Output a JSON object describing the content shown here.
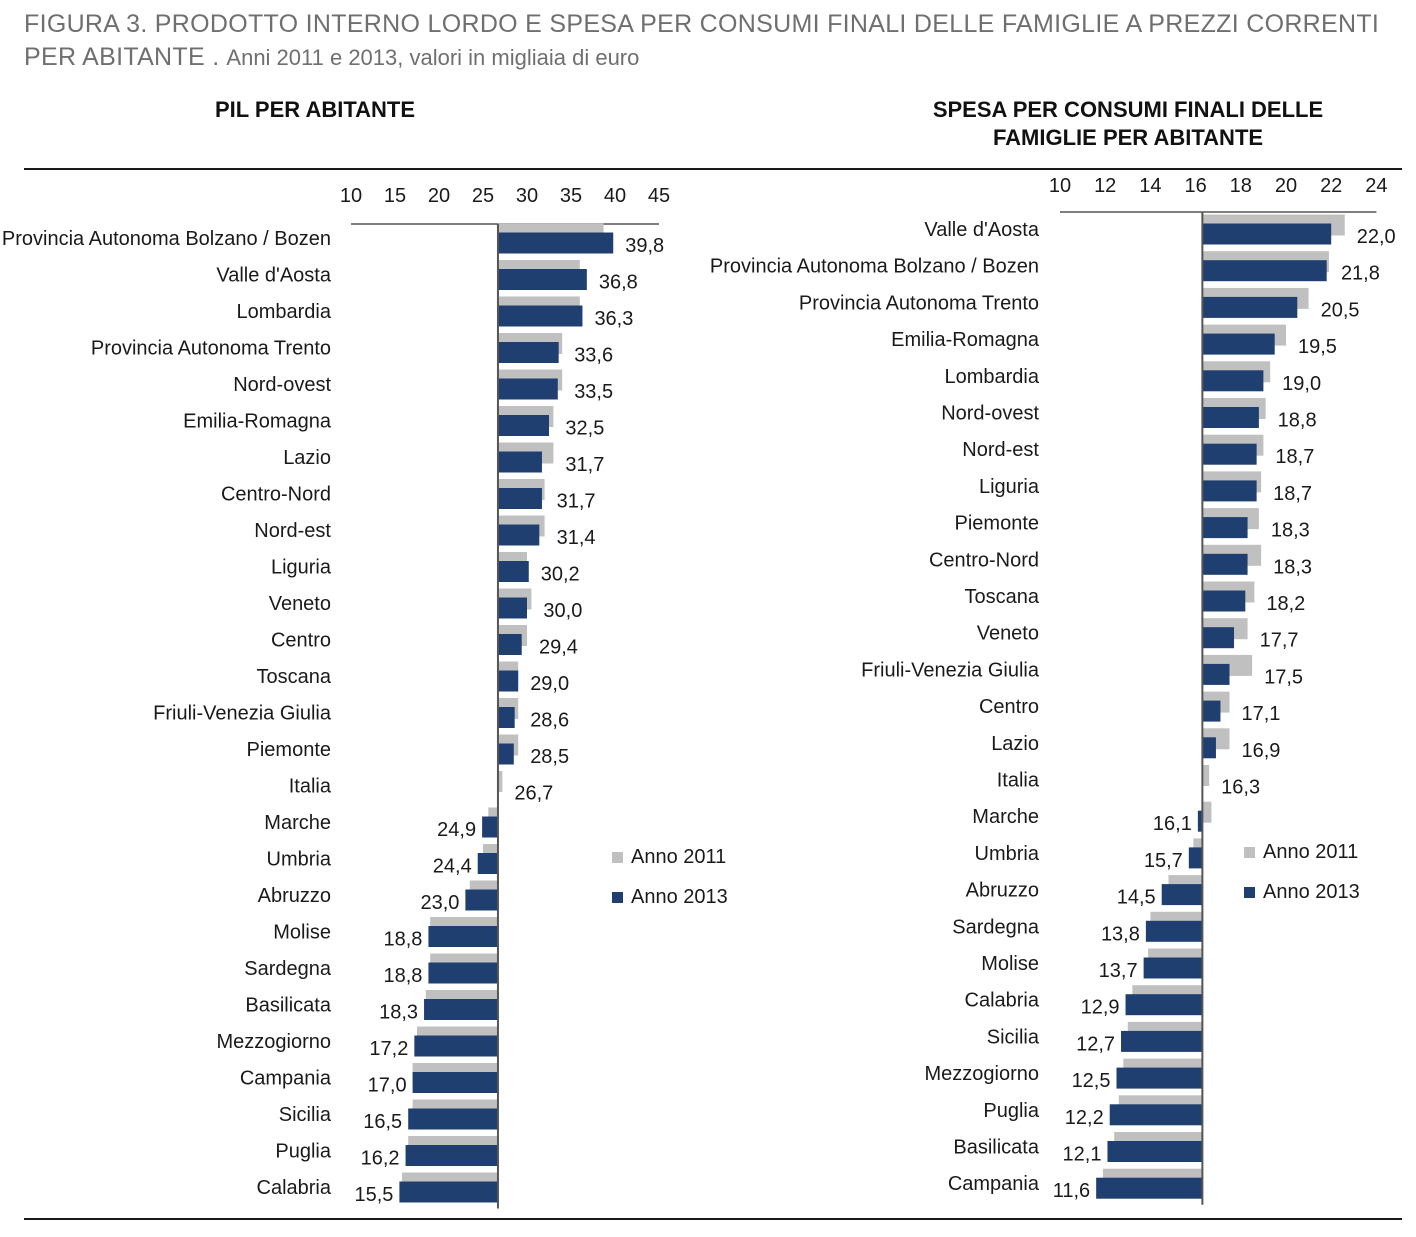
{
  "figure": {
    "title_main": "FIGURA 3. PRODOTTO INTERNO LORDO E SPESA PER CONSUMI FINALI DELLE FAMIGLIE A PREZZI CORRENTI PER ABITANTE .",
    "title_sub": "Anni 2011 e 2013, valori in migliaia di euro"
  },
  "colors": {
    "anno_2011": "#c0c0c0",
    "anno_2013": "#1f3f70",
    "axis": "#555555"
  },
  "legend": {
    "left": [
      "Anno 2011",
      "Anno 2013"
    ],
    "right": [
      "Anno 2011",
      "Anno 2013"
    ]
  },
  "chart_data": [
    {
      "type": "bar",
      "orientation": "horizontal",
      "title": "PIL PER ABITANTE",
      "baseline": 26.7,
      "xlim": [
        10,
        45
      ],
      "xticks": [
        10,
        15,
        20,
        25,
        30,
        35,
        40,
        45
      ],
      "categories": [
        "Provincia Autonoma Bolzano / Bozen",
        "Valle d'Aosta",
        "Lombardia",
        "Provincia Autonoma Trento",
        "Nord-ovest",
        "Emilia-Romagna",
        "Lazio",
        "Centro-Nord",
        "Nord-est",
        "Liguria",
        "Veneto",
        "Centro",
        "Toscana",
        "Friuli-Venezia Giulia",
        "Piemonte",
        "Italia",
        "Marche",
        "Umbria",
        "Abruzzo",
        "Molise",
        "Sardegna",
        "Basilicata",
        "Mezzogiorno",
        "Campania",
        "Sicilia",
        "Puglia",
        "Calabria"
      ],
      "labels": [
        "39,8",
        "36,8",
        "36,3",
        "33,6",
        "33,5",
        "32,5",
        "31,7",
        "31,7",
        "31,4",
        "30,2",
        "30,0",
        "29,4",
        "29,0",
        "28,6",
        "28,5",
        "26,7",
        "24,9",
        "24,4",
        "23,0",
        "18,8",
        "18,8",
        "18,3",
        "17,2",
        "17,0",
        "16,5",
        "16,2",
        "15,5"
      ],
      "series": [
        {
          "name": "Anno 2011",
          "values": [
            38.7,
            36.0,
            36.0,
            34.0,
            34.0,
            33.0,
            33.0,
            32.0,
            32.0,
            30.0,
            30.5,
            30.0,
            29.0,
            29.0,
            29.0,
            27.2,
            25.6,
            25.0,
            23.5,
            19.0,
            19.0,
            18.5,
            17.5,
            17.0,
            17.0,
            16.5,
            15.8
          ]
        },
        {
          "name": "Anno 2013",
          "values": [
            39.8,
            36.8,
            36.3,
            33.6,
            33.5,
            32.5,
            31.7,
            31.7,
            31.4,
            30.2,
            30.0,
            29.4,
            29.0,
            28.6,
            28.5,
            26.7,
            24.9,
            24.4,
            23.0,
            18.8,
            18.8,
            18.3,
            17.2,
            17.0,
            16.5,
            16.2,
            15.5
          ]
        }
      ]
    },
    {
      "type": "bar",
      "orientation": "horizontal",
      "title": "SPESA PER CONSUMI FINALI DELLE FAMIGLIE PER ABITANTE",
      "baseline": 16.3,
      "xlim": [
        10,
        24
      ],
      "xticks": [
        10,
        12,
        14,
        16,
        18,
        20,
        22,
        24
      ],
      "categories": [
        "Valle d'Aosta",
        "Provincia Autonoma Bolzano / Bozen",
        "Provincia Autonoma Trento",
        "Emilia-Romagna",
        "Lombardia",
        "Nord-ovest",
        "Nord-est",
        "Liguria",
        "Piemonte",
        "Centro-Nord",
        "Toscana",
        "Veneto",
        "Friuli-Venezia Giulia",
        "Centro",
        "Lazio",
        "Italia",
        "Marche",
        "Umbria",
        "Abruzzo",
        "Sardegna",
        "Molise",
        "Calabria",
        "Sicilia",
        "Mezzogiorno",
        "Puglia",
        "Basilicata",
        "Campania"
      ],
      "labels": [
        "22,0",
        "21,8",
        "20,5",
        "19,5",
        "19,0",
        "18,8",
        "18,7",
        "18,7",
        "18,3",
        "18,3",
        "18,2",
        "17,7",
        "17,5",
        "17,1",
        "16,9",
        "16,3",
        "16,1",
        "15,7",
        "14,5",
        "13,8",
        "13,7",
        "12,9",
        "12,7",
        "12,5",
        "12,2",
        "12,1",
        "11,6"
      ],
      "series": [
        {
          "name": "Anno 2011",
          "values": [
            22.6,
            21.9,
            21.0,
            20.0,
            19.3,
            19.1,
            19.0,
            18.9,
            18.8,
            18.9,
            18.6,
            18.3,
            18.5,
            17.5,
            17.5,
            16.6,
            16.7,
            15.9,
            14.8,
            14.0,
            13.9,
            13.2,
            13.0,
            12.8,
            12.6,
            12.4,
            11.9
          ]
        },
        {
          "name": "Anno 2013",
          "values": [
            22.0,
            21.8,
            20.5,
            19.5,
            19.0,
            18.8,
            18.7,
            18.7,
            18.3,
            18.3,
            18.2,
            17.7,
            17.5,
            17.1,
            16.9,
            16.3,
            16.1,
            15.7,
            14.5,
            13.8,
            13.7,
            12.9,
            12.7,
            12.5,
            12.2,
            12.1,
            11.6
          ]
        }
      ]
    }
  ]
}
